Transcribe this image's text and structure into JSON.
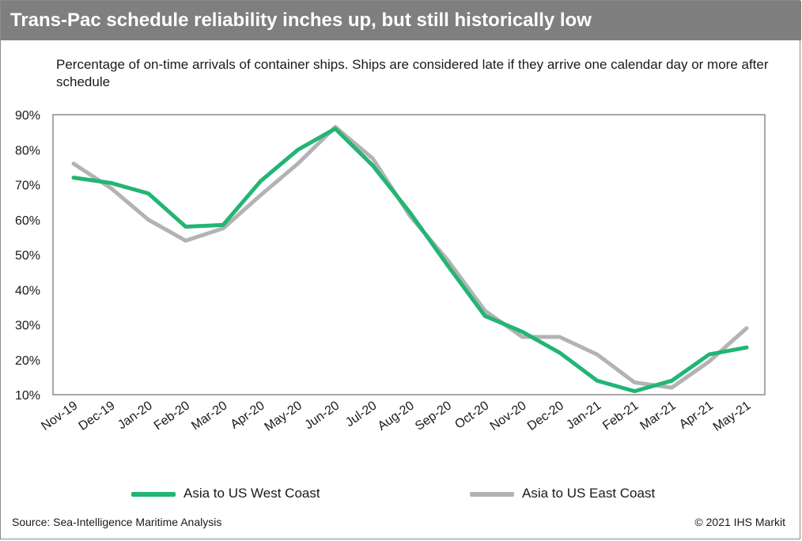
{
  "header": {
    "title": "Trans-Pac schedule reliability inches up, but still historically low"
  },
  "subtitle": "Percentage of on-time arrivals of container ships. Ships are considered late if they arrive one calendar day or more after schedule",
  "footer": {
    "source": "Source: Sea-Intelligence Maritime Analysis",
    "copyright": "© 2021 IHS Markit"
  },
  "colors": {
    "title_bar": "#7f7f7f",
    "west": "#22b573",
    "east": "#b3b3b3"
  },
  "chart_data": {
    "type": "line",
    "title": "",
    "xlabel": "",
    "ylabel": "",
    "ylim": [
      10,
      90
    ],
    "y_ticks": [
      10,
      20,
      30,
      40,
      50,
      60,
      70,
      80,
      90
    ],
    "y_tick_labels": [
      "10%",
      "20%",
      "30%",
      "40%",
      "50%",
      "60%",
      "70%",
      "80%",
      "90%"
    ],
    "grid": false,
    "legend_position": "bottom",
    "categories": [
      "Nov-19",
      "Dec-19",
      "Jan-20",
      "Feb-20",
      "Mar-20",
      "Apr-20",
      "May-20",
      "Jun-20",
      "Jul-20",
      "Aug-20",
      "Sep-20",
      "Oct-20",
      "Nov-20",
      "Dec-20",
      "Jan-21",
      "Feb-21",
      "Mar-21",
      "Apr-21",
      "May-21"
    ],
    "series": [
      {
        "name": "Asia to US West Coast",
        "color": "#22b573",
        "values": [
          72,
          70.5,
          67.5,
          58,
          58.5,
          71,
          80,
          86,
          75.5,
          62,
          47,
          32.5,
          28,
          22,
          14,
          11,
          14,
          21.5,
          23.5
        ]
      },
      {
        "name": "Asia to US East Coast",
        "color": "#b3b3b3",
        "values": [
          76,
          69,
          60,
          54,
          57.5,
          67,
          76,
          86.5,
          77.5,
          61,
          48.5,
          34,
          26.5,
          26.5,
          21.5,
          13.5,
          12,
          19.5,
          29
        ]
      }
    ]
  }
}
